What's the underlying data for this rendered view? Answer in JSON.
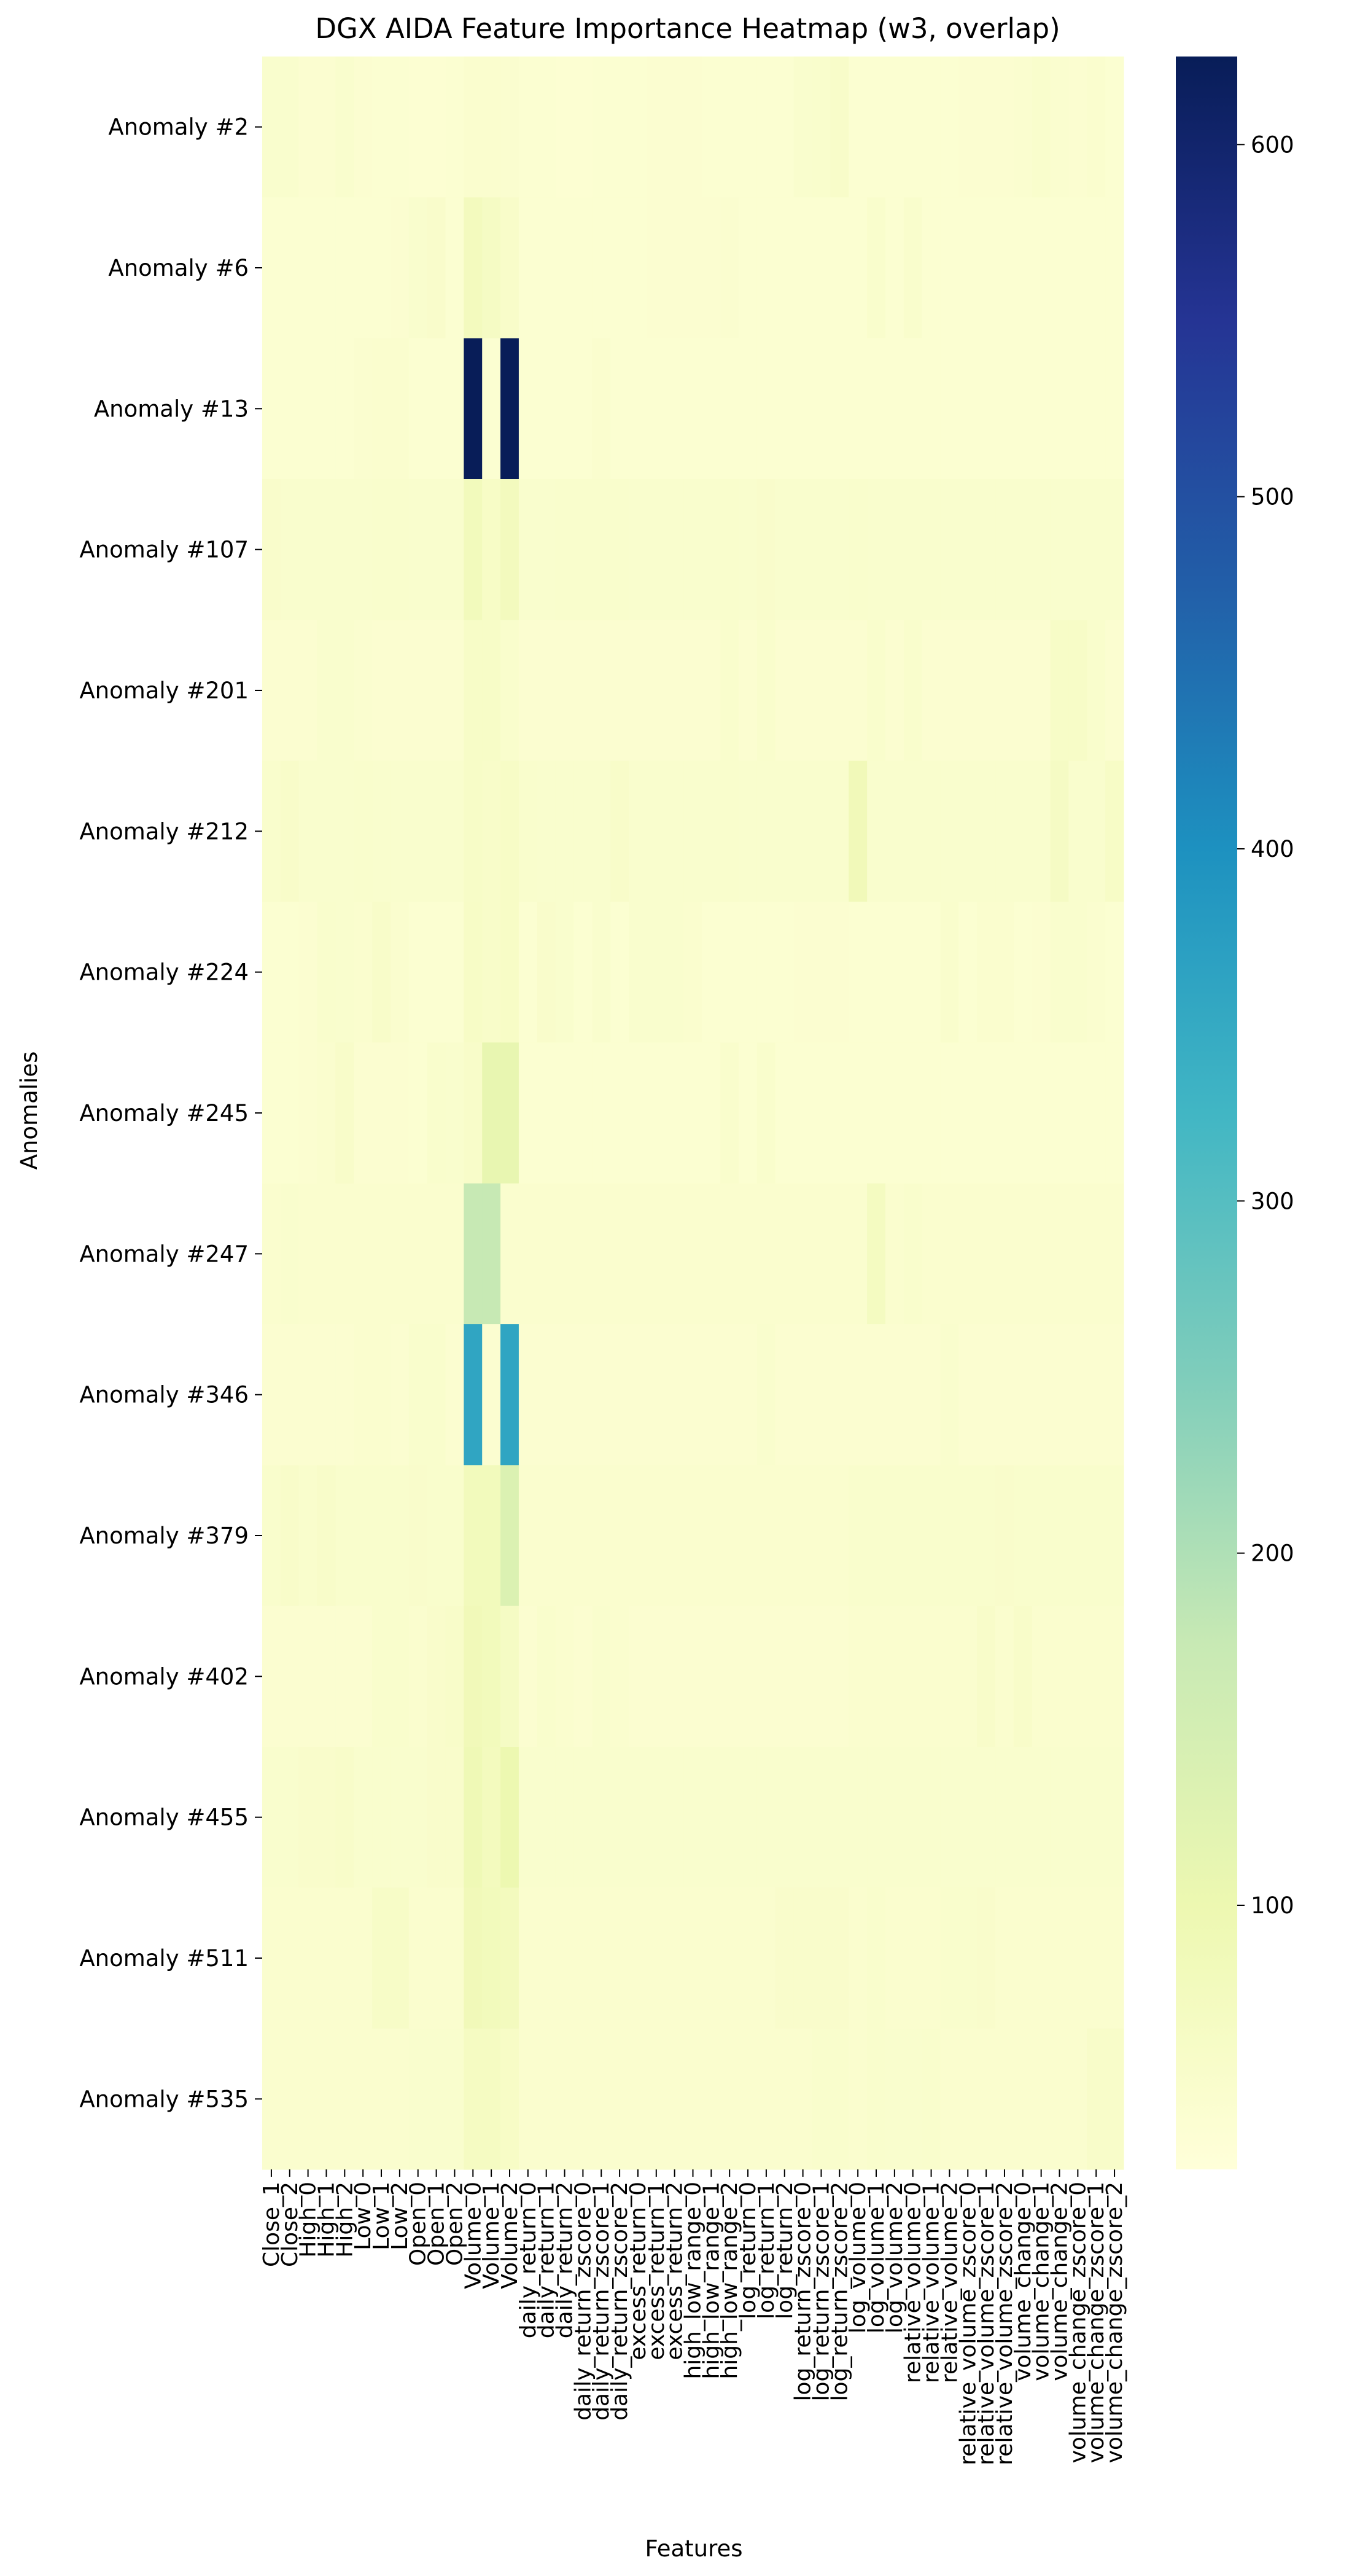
{
  "chart_data": {
    "type": "heatmap",
    "title": "DGX AIDA Feature Importance Heatmap (w3, overlap)",
    "xlabel": "Features",
    "ylabel": "Anomalies",
    "colormap": "YlGnBu",
    "colorbar": {
      "min": 25,
      "max": 625,
      "ticks": [
        100,
        200,
        300,
        400,
        500,
        600
      ]
    },
    "x_labels": [
      "Close_1",
      "Close_2",
      "High_0",
      "High_1",
      "High_2",
      "Low_0",
      "Low_1",
      "Low_2",
      "Open_0",
      "Open_1",
      "Open_2",
      "Volume_0",
      "Volume_1",
      "Volume_2",
      "daily_return_0",
      "daily_return_1",
      "daily_return_2",
      "daily_return_zscore_0",
      "daily_return_zscore_1",
      "daily_return_zscore_2",
      "excess_return_0",
      "excess_return_1",
      "excess_return_2",
      "high_low_range_0",
      "high_low_range_1",
      "high_low_range_2",
      "log_return_0",
      "log_return_1",
      "log_return_2",
      "log_return_zscore_0",
      "log_return_zscore_1",
      "log_return_zscore_2",
      "log_volume_0",
      "log_volume_1",
      "log_volume_2",
      "relative_volume_0",
      "relative_volume_1",
      "relative_volume_2",
      "relative_volume_zscore_0",
      "relative_volume_zscore_1",
      "relative_volume_zscore_2",
      "volume_change_0",
      "volume_change_1",
      "volume_change_2",
      "volume_change_zscore_0",
      "volume_change_zscore_1",
      "volume_change_zscore_2"
    ],
    "y_labels": [
      "Anomaly #2",
      "Anomaly #6",
      "Anomaly #13",
      "Anomaly #107",
      "Anomaly #201",
      "Anomaly #212",
      "Anomaly #224",
      "Anomaly #245",
      "Anomaly #247",
      "Anomaly #346",
      "Anomaly #379",
      "Anomaly #402",
      "Anomaly #455",
      "Anomaly #511",
      "Anomaly #535"
    ],
    "values": [
      [
        48,
        48,
        42,
        42,
        48,
        42,
        40,
        40,
        38,
        38,
        40,
        46,
        45,
        44,
        40,
        40,
        38,
        38,
        40,
        40,
        40,
        42,
        42,
        42,
        40,
        40,
        40,
        40,
        40,
        48,
        50,
        55,
        40,
        40,
        40,
        40,
        40,
        40,
        42,
        42,
        42,
        44,
        50,
        44,
        42,
        46,
        40
      ],
      [
        40,
        40,
        40,
        40,
        40,
        40,
        40,
        42,
        48,
        52,
        40,
        75,
        65,
        55,
        40,
        40,
        40,
        40,
        40,
        40,
        40,
        42,
        42,
        42,
        42,
        44,
        40,
        40,
        40,
        40,
        40,
        40,
        40,
        50,
        40,
        50,
        40,
        40,
        40,
        40,
        40,
        40,
        40,
        40,
        40,
        40,
        40
      ],
      [
        40,
        40,
        40,
        40,
        40,
        44,
        45,
        45,
        40,
        40,
        40,
        625,
        40,
        625,
        40,
        40,
        40,
        40,
        46,
        40,
        40,
        40,
        40,
        40,
        40,
        40,
        40,
        40,
        40,
        40,
        40,
        40,
        40,
        40,
        40,
        40,
        40,
        40,
        40,
        40,
        40,
        40,
        40,
        40,
        40,
        40,
        40
      ],
      [
        52,
        48,
        48,
        48,
        48,
        48,
        50,
        50,
        48,
        48,
        48,
        80,
        60,
        75,
        48,
        48,
        50,
        50,
        50,
        50,
        48,
        48,
        48,
        48,
        48,
        50,
        48,
        52,
        48,
        48,
        48,
        48,
        50,
        48,
        48,
        48,
        48,
        48,
        48,
        48,
        48,
        48,
        48,
        48,
        48,
        48,
        48
      ],
      [
        42,
        42,
        42,
        48,
        48,
        44,
        42,
        42,
        42,
        42,
        42,
        58,
        58,
        50,
        42,
        42,
        42,
        42,
        42,
        42,
        42,
        42,
        42,
        42,
        42,
        50,
        42,
        50,
        42,
        42,
        42,
        42,
        42,
        50,
        42,
        50,
        42,
        42,
        42,
        42,
        42,
        42,
        42,
        58,
        58,
        50,
        42
      ],
      [
        50,
        55,
        48,
        48,
        48,
        50,
        48,
        48,
        48,
        48,
        48,
        58,
        55,
        60,
        50,
        48,
        48,
        48,
        48,
        55,
        48,
        48,
        48,
        48,
        48,
        50,
        48,
        48,
        48,
        48,
        48,
        48,
        85,
        48,
        48,
        48,
        48,
        48,
        48,
        48,
        48,
        48,
        48,
        65,
        48,
        48,
        60
      ],
      [
        40,
        40,
        42,
        50,
        48,
        45,
        55,
        45,
        40,
        40,
        40,
        60,
        55,
        60,
        40,
        52,
        48,
        40,
        48,
        40,
        48,
        48,
        48,
        45,
        40,
        40,
        40,
        40,
        40,
        42,
        42,
        42,
        40,
        40,
        40,
        40,
        40,
        50,
        40,
        45,
        45,
        40,
        42,
        48,
        48,
        44,
        40
      ],
      [
        40,
        40,
        42,
        45,
        55,
        42,
        42,
        42,
        40,
        50,
        48,
        55,
        110,
        110,
        40,
        40,
        40,
        40,
        40,
        40,
        40,
        40,
        40,
        40,
        40,
        50,
        40,
        50,
        40,
        40,
        40,
        40,
        40,
        40,
        40,
        40,
        40,
        40,
        40,
        40,
        40,
        40,
        40,
        40,
        40,
        40,
        40
      ],
      [
        45,
        48,
        45,
        45,
        45,
        45,
        45,
        45,
        45,
        45,
        45,
        175,
        175,
        45,
        45,
        45,
        45,
        45,
        45,
        45,
        45,
        45,
        45,
        45,
        45,
        45,
        45,
        45,
        45,
        45,
        45,
        45,
        45,
        70,
        45,
        50,
        45,
        45,
        45,
        45,
        45,
        45,
        45,
        45,
        45,
        45,
        45
      ],
      [
        42,
        42,
        42,
        42,
        42,
        46,
        46,
        42,
        50,
        50,
        42,
        360,
        42,
        360,
        42,
        42,
        42,
        42,
        42,
        42,
        42,
        42,
        42,
        42,
        42,
        42,
        42,
        48,
        42,
        42,
        42,
        42,
        42,
        42,
        42,
        42,
        42,
        48,
        42,
        42,
        42,
        42,
        42,
        42,
        42,
        42,
        42
      ],
      [
        50,
        55,
        50,
        55,
        50,
        50,
        50,
        50,
        52,
        50,
        50,
        80,
        80,
        135,
        45,
        45,
        45,
        45,
        45,
        45,
        45,
        45,
        45,
        45,
        45,
        45,
        45,
        45,
        45,
        45,
        45,
        45,
        50,
        50,
        50,
        50,
        50,
        50,
        50,
        50,
        52,
        50,
        50,
        50,
        50,
        50,
        50
      ],
      [
        42,
        42,
        42,
        42,
        42,
        42,
        50,
        50,
        45,
        52,
        55,
        85,
        80,
        65,
        42,
        50,
        45,
        42,
        48,
        45,
        42,
        42,
        42,
        42,
        42,
        42,
        42,
        42,
        42,
        42,
        42,
        42,
        45,
        45,
        45,
        45,
        45,
        45,
        45,
        55,
        45,
        55,
        45,
        45,
        45,
        45,
        45
      ],
      [
        48,
        48,
        52,
        52,
        55,
        48,
        48,
        48,
        48,
        52,
        52,
        90,
        75,
        100,
        48,
        48,
        48,
        48,
        48,
        48,
        48,
        48,
        48,
        48,
        48,
        48,
        48,
        48,
        48,
        48,
        48,
        48,
        48,
        48,
        48,
        48,
        48,
        48,
        48,
        48,
        48,
        48,
        48,
        48,
        48,
        48,
        48
      ],
      [
        45,
        45,
        45,
        45,
        45,
        45,
        58,
        58,
        45,
        45,
        45,
        85,
        80,
        75,
        45,
        45,
        45,
        45,
        45,
        45,
        45,
        45,
        45,
        45,
        45,
        45,
        45,
        45,
        52,
        52,
        52,
        52,
        45,
        50,
        45,
        45,
        45,
        50,
        50,
        52,
        45,
        45,
        45,
        45,
        45,
        45,
        45
      ],
      [
        45,
        45,
        45,
        45,
        45,
        45,
        45,
        45,
        48,
        48,
        48,
        68,
        68,
        60,
        45,
        45,
        45,
        45,
        45,
        45,
        45,
        45,
        45,
        45,
        45,
        45,
        45,
        45,
        45,
        45,
        50,
        50,
        45,
        50,
        48,
        48,
        50,
        45,
        45,
        45,
        45,
        45,
        45,
        45,
        45,
        55,
        55
      ]
    ]
  }
}
